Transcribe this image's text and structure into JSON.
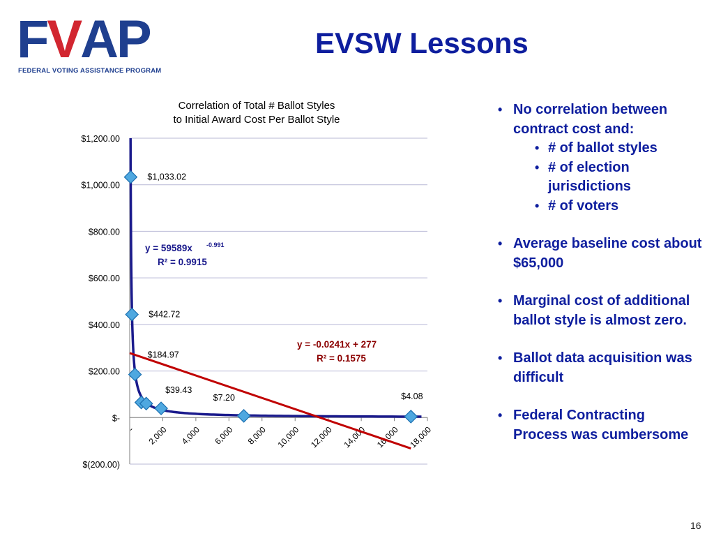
{
  "logo": {
    "letters": [
      "F",
      "V",
      "A",
      "P"
    ],
    "subtitle": "FEDERAL VOTING ASSISTANCE PROGRAM",
    "colors": {
      "blue": "#1f3f8f",
      "red": "#d22630"
    }
  },
  "slide": {
    "title": "EVSW Lessons",
    "page_number": "16"
  },
  "bullets": [
    {
      "text": "No correlation between contract cost and:",
      "sub": [
        "# of ballot styles",
        "# of election jurisdictions",
        "# of voters"
      ]
    },
    {
      "text": "Average baseline cost about $65,000",
      "sub": []
    },
    {
      "text": "Marginal cost of additional ballot style is almost zero.",
      "sub": []
    },
    {
      "text": "Ballot data acquisition was difficult",
      "sub": []
    },
    {
      "text": "Federal Contracting Process was cumbersome",
      "sub": []
    }
  ],
  "chart_data": {
    "type": "scatter",
    "title_lines": [
      "Correlation of Total # Ballot Styles",
      "to Initial Award Cost Per Ballot Style"
    ],
    "xlabel": "",
    "ylabel": "",
    "xlim": [
      0,
      18000
    ],
    "ylim": [
      -200,
      1200
    ],
    "x_ticks": [
      0,
      2000,
      4000,
      6000,
      8000,
      10000,
      12000,
      14000,
      16000,
      18000
    ],
    "x_tick_labels": [
      "-",
      "2,000",
      "4,000",
      "6,000",
      "8,000",
      "10,000",
      "12,000",
      "14,000",
      "16,000",
      "18,000"
    ],
    "y_ticks": [
      -200,
      0,
      200,
      400,
      600,
      800,
      1000,
      1200
    ],
    "y_tick_labels": [
      "$(200.00)",
      "$-",
      "$200.00",
      "$400.00",
      "$600.00",
      "$800.00",
      "$1,000.00",
      "$1,200.00"
    ],
    "grid": true,
    "points": [
      {
        "x": 60,
        "y": 1033.02,
        "label": "$1,033.02"
      },
      {
        "x": 135,
        "y": 442.72,
        "label": "$442.72"
      },
      {
        "x": 320,
        "y": 184.97,
        "label": "$184.97"
      },
      {
        "x": 700,
        "y": 65,
        "label": ""
      },
      {
        "x": 1000,
        "y": 60,
        "label": ""
      },
      {
        "x": 1900,
        "y": 39.43,
        "label": "$39.43"
      },
      {
        "x": 6900,
        "y": 7.2,
        "label": "$7.20"
      },
      {
        "x": 17000,
        "y": 4.08,
        "label": "$4.08"
      }
    ],
    "power_trend": {
      "a": 59589,
      "b": -0.991,
      "equation": "y = 59589x",
      "exponent": "-0.991",
      "r2": "R² = 0.9915"
    },
    "linear_trend": {
      "slope": -0.0241,
      "intercept": 277,
      "x_end": 17000,
      "equation": "y = -0.0241x + 277",
      "r2": "R² = 0.1575"
    },
    "colors": {
      "marker_fill": "#4fa8e0",
      "marker_edge": "#1a6fb0",
      "power_line": "#1a1a8c",
      "linear_line": "#c00000",
      "power_label": "#1a1a8c",
      "linear_label": "#8b0000",
      "grid": "#b9b9d6",
      "axis": "#7f7f7f"
    }
  }
}
